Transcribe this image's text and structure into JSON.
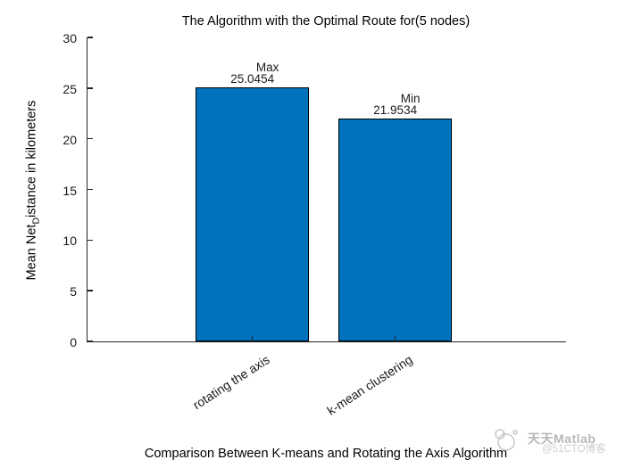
{
  "chart_data": {
    "type": "bar",
    "title": "The Algorithm with the Optimal Route for(5 nodes)",
    "xlabel": "Comparison Between K-means and Rotating the Axis Algorithm",
    "ylabel": {
      "prefix": "Mean Net",
      "subscript": "D",
      "suffix": "istance in kilometers"
    },
    "categories": [
      "rotating the axis",
      "k-mean clustering"
    ],
    "values": [
      25.0454,
      21.9534
    ],
    "point_labels": [
      "Max",
      "Min"
    ],
    "value_labels": [
      "25.0454",
      "21.9534"
    ],
    "yticks": [
      0,
      5,
      10,
      15,
      20,
      25,
      30
    ],
    "ylim": [
      0,
      30
    ],
    "xtick_angle_deg": 33,
    "grid": false,
    "legend": null,
    "bar_color": "#0072BD",
    "bar_edge_color": "#000000",
    "axis_color": "#262626"
  },
  "watermark": {
    "brand": "天天Matlab",
    "handle": "@51CTO博客",
    "logo": "doodle-circles-logo",
    "brand_color": "#b8b8b8",
    "handle_color": "#cfcfcf"
  }
}
